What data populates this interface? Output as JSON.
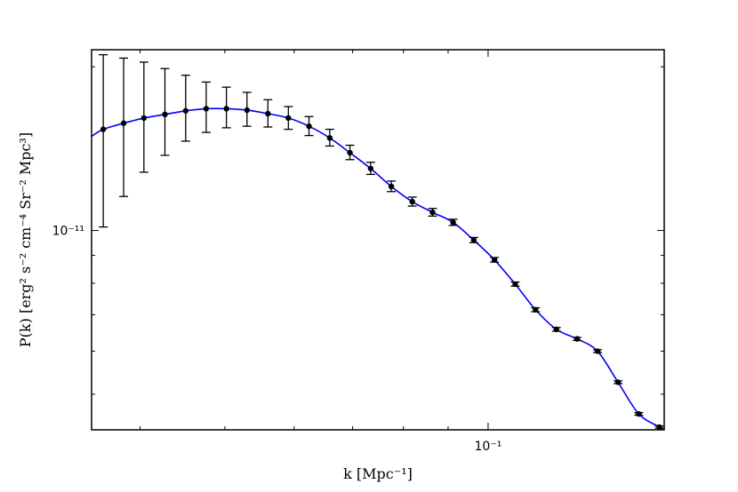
{
  "chart_data": {
    "type": "scatter",
    "title": "",
    "xlabel": "k [Mpc⁻¹]",
    "ylabel": "P(k) [erg² s⁻² cm⁻⁴ Sr⁻² Mpc³]",
    "xscale": "log",
    "yscale": "log",
    "xlim": [
      0.0352,
      0.159
    ],
    "ylim": [
      4.3e-12,
      2.15e-11
    ],
    "x_tick_labels": [
      {
        "value": 0.1,
        "label": "10⁻¹"
      }
    ],
    "y_tick_labels": [
      {
        "value": 1e-11,
        "label": "10⁻¹¹"
      }
    ],
    "grid": false,
    "series": [
      {
        "kind": "errorbar",
        "color": "#000000",
        "x": [
          0.0363,
          0.0383,
          0.0404,
          0.0427,
          0.0451,
          0.0476,
          0.0502,
          0.053,
          0.056,
          0.0591,
          0.0624,
          0.0659,
          0.0695,
          0.0734,
          0.0775,
          0.0819,
          0.0864,
          0.0912,
          0.0963,
          0.1017,
          0.1074,
          0.1133,
          0.1197,
          0.1264,
          0.1334,
          0.1408,
          0.1487,
          0.157
        ],
        "y": [
          1.535e-11,
          1.575e-11,
          1.61e-11,
          1.635e-11,
          1.66e-11,
          1.675e-11,
          1.675e-11,
          1.665e-11,
          1.64e-11,
          1.61e-11,
          1.555e-11,
          1.48e-11,
          1.39e-11,
          1.3e-11,
          1.205e-11,
          1.13e-11,
          1.08e-11,
          1.035e-11,
          9.6e-12,
          8.83e-12,
          7.97e-12,
          7.15e-12,
          6.58e-12,
          6.32e-12,
          6e-12,
          5.26e-12,
          4.6e-12,
          4.35e-12
        ],
        "yerr_low": [
          5.2e-12,
          4.2e-12,
          3.3e-12,
          2.6e-12,
          2e-12,
          1.6e-12,
          1.3e-12,
          1.1e-12,
          9e-13,
          7.5e-13,
          6e-13,
          5e-13,
          4e-13,
          3.2e-13,
          2.6e-13,
          2.1e-13,
          1.7e-13,
          1.3e-13,
          1e-13,
          8e-14,
          7e-14,
          6e-14,
          5e-14,
          4e-14,
          3.5e-14,
          3e-14,
          2.5e-14,
          2e-14
        ],
        "yerr_high": [
          5.7e-12,
          5e-12,
          4.3e-12,
          3.5e-12,
          2.7e-12,
          2e-12,
          1.6e-12,
          1.3e-12,
          1e-12,
          8e-13,
          6.5e-13,
          5.5e-13,
          4.5e-13,
          3.5e-13,
          2.8e-13,
          2.2e-13,
          1.8e-13,
          1.4e-13,
          1.1e-13,
          9e-14,
          7e-14,
          6e-14,
          5e-14,
          4e-14,
          3.5e-14,
          3e-14,
          2.5e-14,
          2e-14
        ]
      },
      {
        "kind": "line",
        "color": "#0000ff",
        "x": [
          0.0352,
          0.0363,
          0.0383,
          0.0404,
          0.0427,
          0.0451,
          0.0476,
          0.0502,
          0.053,
          0.056,
          0.0591,
          0.0624,
          0.0659,
          0.0695,
          0.0734,
          0.0775,
          0.0819,
          0.0864,
          0.0912,
          0.0963,
          0.1017,
          0.1074,
          0.1133,
          0.1197,
          0.1264,
          0.1334,
          0.1408,
          0.1487,
          0.157,
          0.159
        ],
        "y": [
          1.49e-11,
          1.535e-11,
          1.575e-11,
          1.61e-11,
          1.635e-11,
          1.66e-11,
          1.675e-11,
          1.675e-11,
          1.665e-11,
          1.64e-11,
          1.61e-11,
          1.555e-11,
          1.48e-11,
          1.39e-11,
          1.3e-11,
          1.205e-11,
          1.13e-11,
          1.08e-11,
          1.035e-11,
          9.6e-12,
          8.83e-12,
          7.97e-12,
          7.15e-12,
          6.58e-12,
          6.32e-12,
          6e-12,
          5.26e-12,
          4.6e-12,
          4.35e-12,
          4.28e-12
        ]
      }
    ]
  }
}
